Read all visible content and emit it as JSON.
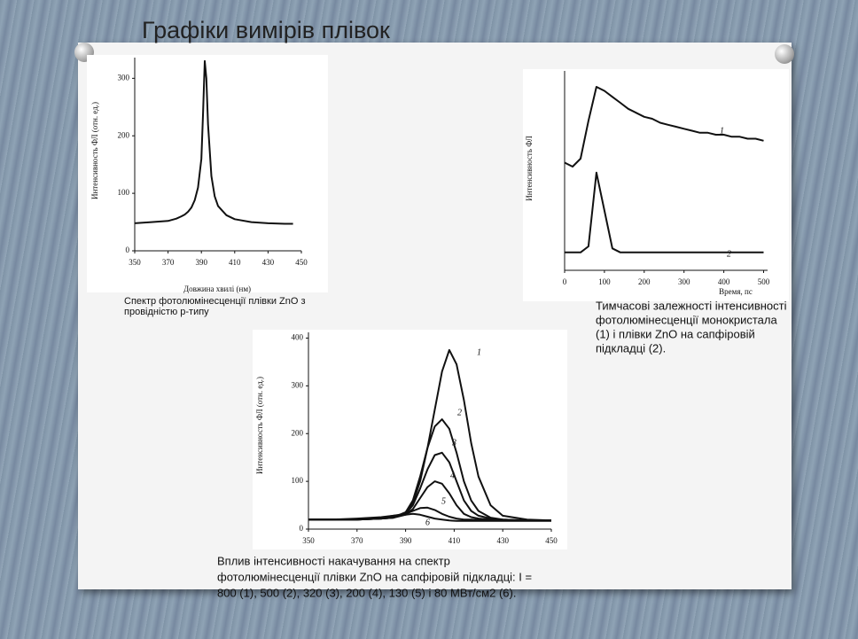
{
  "slide": {
    "title": "Графіки вимірів плівок"
  },
  "chart_data": [
    {
      "type": "line",
      "x_label": "Довжина хвилі (нм)",
      "y_label": "Интенсивность ФЛ (отн. ед.)",
      "x": [
        350,
        360,
        370,
        375,
        378,
        380,
        382,
        384,
        386,
        388,
        390,
        391,
        392,
        393,
        394,
        396,
        398,
        400,
        405,
        410,
        420,
        430,
        440,
        445
      ],
      "values": [
        48,
        50,
        52,
        56,
        60,
        63,
        68,
        75,
        88,
        110,
        160,
        240,
        330,
        300,
        220,
        130,
        95,
        78,
        62,
        55,
        50,
        48,
        47,
        47
      ],
      "color": "#111111",
      "xlim": [
        350,
        450
      ],
      "ylim": [
        0,
        336
      ],
      "xticks": [
        350,
        370,
        390,
        410,
        430,
        450
      ],
      "yticks": [
        0,
        100,
        200,
        300
      ],
      "caption_lines": [
        "Спектр фотолюмінесценції плівки ZnO з",
        "провідністю р-типу"
      ]
    },
    {
      "type": "line",
      "x_label": "Время, пс",
      "y_label": "Интенсивность ФЛ",
      "x": [
        0,
        20,
        40,
        60,
        80,
        100,
        120,
        140,
        160,
        180,
        200,
        220,
        240,
        260,
        280,
        300,
        320,
        340,
        360,
        380,
        400,
        420,
        440,
        460,
        480,
        500
      ],
      "series": [
        {
          "name": "1",
          "color": "#111111",
          "values": [
            5.4,
            5.2,
            5.6,
            7.5,
            9.2,
            9.0,
            8.7,
            8.4,
            8.1,
            7.9,
            7.7,
            7.6,
            7.4,
            7.3,
            7.2,
            7.1,
            7.0,
            6.9,
            6.9,
            6.8,
            6.8,
            6.7,
            6.7,
            6.6,
            6.6,
            6.5
          ]
        },
        {
          "name": "2",
          "color": "#111111",
          "values": [
            0.9,
            0.9,
            0.9,
            1.2,
            4.9,
            3.0,
            1.1,
            0.9,
            0.9,
            0.9,
            0.9,
            0.9,
            0.9,
            0.9,
            0.9,
            0.9,
            0.9,
            0.9,
            0.9,
            0.9,
            0.9,
            0.9,
            0.9,
            0.9,
            0.9,
            0.9
          ]
        }
      ],
      "xlim": [
        0,
        510
      ],
      "ylim": [
        0,
        10
      ],
      "xticks": [
        0,
        100,
        200,
        300,
        400,
        500
      ],
      "caption_lines": [
        "Тимчасові залежності інтенсивності",
        "фотолюмінесценції монокристала",
        "(1) і плівки ZnO на сапфіровій",
        "підкладці (2)."
      ]
    },
    {
      "type": "line",
      "y_label": "Интенсивность ФЛ (отн. ед.)",
      "x": [
        350,
        360,
        370,
        380,
        385,
        390,
        393,
        396,
        399,
        402,
        405,
        408,
        411,
        414,
        417,
        420,
        425,
        430,
        440,
        450
      ],
      "series": [
        {
          "name": "1",
          "color": "#111111",
          "values": [
            20,
            20,
            20,
            22,
            25,
            35,
            55,
            100,
            170,
            250,
            330,
            375,
            345,
            270,
            180,
            110,
            50,
            28,
            20,
            18
          ]
        },
        {
          "name": "2",
          "color": "#111111",
          "values": [
            20,
            20,
            20,
            22,
            24,
            35,
            60,
            110,
            170,
            215,
            230,
            210,
            160,
            100,
            60,
            38,
            24,
            20,
            18,
            18
          ]
        },
        {
          "name": "3",
          "color": "#111111",
          "values": [
            20,
            20,
            20,
            22,
            24,
            32,
            50,
            85,
            125,
            155,
            160,
            140,
            100,
            60,
            38,
            28,
            22,
            20,
            18,
            18
          ]
        },
        {
          "name": "4",
          "color": "#111111",
          "values": [
            20,
            20,
            20,
            22,
            24,
            30,
            42,
            65,
            88,
            100,
            95,
            75,
            50,
            32,
            25,
            22,
            20,
            19,
            18,
            18
          ]
        },
        {
          "name": "5",
          "color": "#111111",
          "values": [
            20,
            20,
            21,
            24,
            28,
            32,
            38,
            44,
            45,
            40,
            32,
            26,
            22,
            20,
            20,
            19,
            18,
            18,
            18,
            18
          ]
        },
        {
          "name": "6",
          "color": "#111111",
          "values": [
            20,
            20,
            22,
            25,
            28,
            30,
            32,
            30,
            26,
            22,
            20,
            18,
            17,
            17,
            17,
            17,
            17,
            17,
            17,
            17
          ]
        }
      ],
      "xlim": [
        350,
        450
      ],
      "ylim": [
        0,
        412
      ],
      "xticks": [
        350,
        370,
        390,
        410,
        430,
        450
      ],
      "yticks": [
        0,
        100,
        200,
        300,
        400
      ],
      "caption_lines": [
        "Вплив інтенсивності накачування на спектр",
        "фотолюмінесценції   плівки ZnO на сапфіровій  підкладці:  I =",
        "800  (1), 500 (2), 320 (3), 200 (4), 130  (5) і 80 МВт/см2 (6)."
      ]
    }
  ]
}
